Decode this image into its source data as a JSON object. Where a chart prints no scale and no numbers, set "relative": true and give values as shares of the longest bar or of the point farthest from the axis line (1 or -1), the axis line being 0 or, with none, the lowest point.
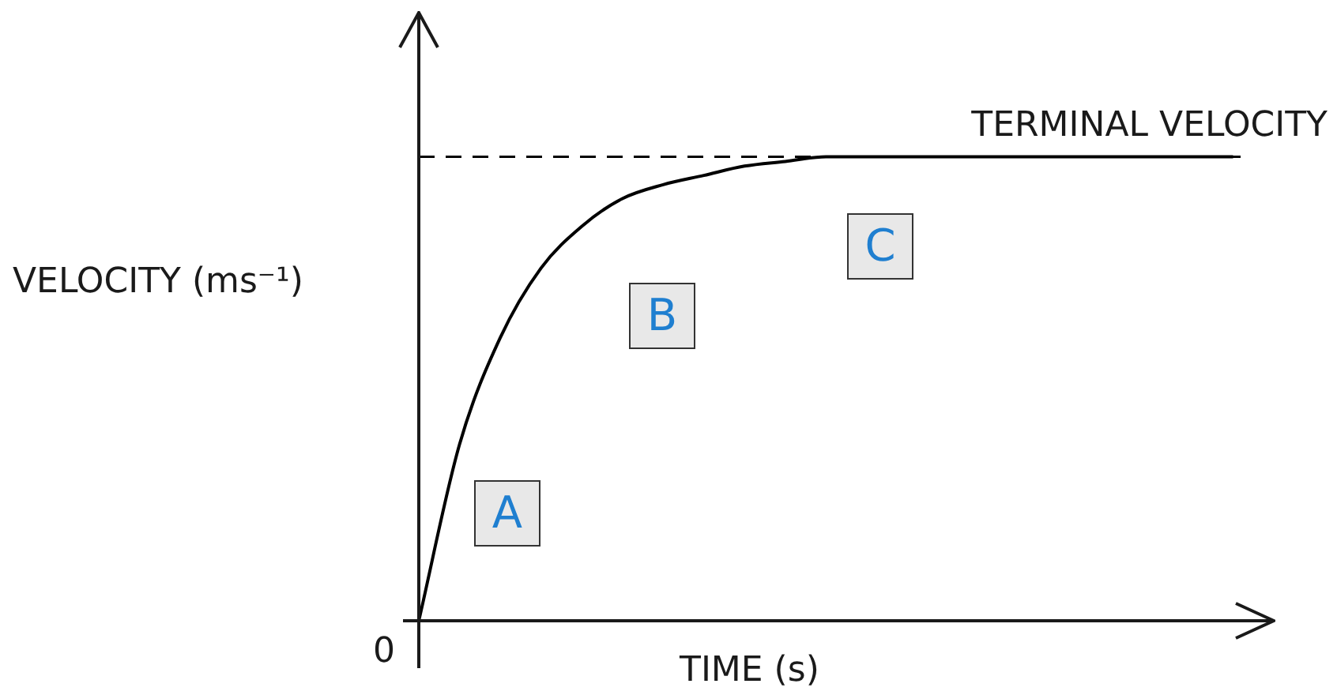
{
  "chart_data": {
    "type": "line",
    "xlabel": "TIME (s)",
    "ylabel": "VELOCITY (ms⁻¹)",
    "categories": [
      null,
      null,
      null,
      null,
      null,
      null,
      null,
      null,
      null,
      null,
      null,
      null,
      null,
      null,
      null,
      null,
      null,
      null,
      null,
      null,
      null,
      null
    ],
    "values": [
      0,
      0.38,
      0.61,
      0.76,
      0.85,
      0.91,
      0.94,
      0.96,
      0.98,
      0.99,
      1,
      1,
      1,
      1,
      1,
      1,
      1,
      1,
      1,
      1,
      1,
      null
    ],
    "color": "#000000",
    "relative": true,
    "marker": "none",
    "line_style": "solid",
    "legend": false,
    "tick_labels": false,
    "ref_lines": [
      {
        "axis": "y",
        "value": 1,
        "label": "TERMINAL VELOCITY",
        "color": "#000000",
        "line_style": "dashed"
      }
    ],
    "annotations": [
      "A",
      "B",
      "C",
      "0"
    ]
  }
}
